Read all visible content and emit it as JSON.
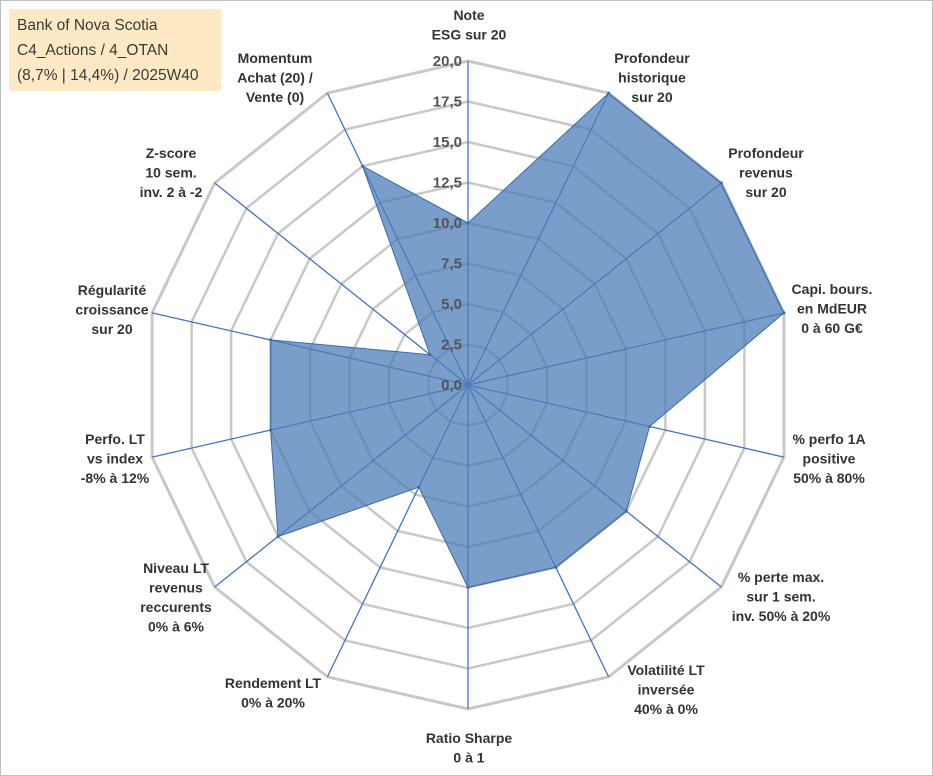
{
  "title": {
    "line1": "Bank of Nova Scotia",
    "line2": "C4_Actions / 4_OTAN",
    "line3": "(8,7% | 14,4%) / 2025W40"
  },
  "colors": {
    "fill": "#4e7db8",
    "stroke": "#3a6aa8",
    "grid": "#c8c8c8",
    "spoke": "#4472c4"
  },
  "chart_data": {
    "type": "radar",
    "rmax": 20,
    "ticks": [
      "0,0",
      "2,5",
      "5,0",
      "7,5",
      "10,0",
      "12,5",
      "15,0",
      "17,5",
      "20,0"
    ],
    "tick_values": [
      0,
      2.5,
      5,
      7.5,
      10,
      12.5,
      15,
      17.5,
      20
    ],
    "axes": [
      {
        "lines": [
          "Note",
          "ESG sur 20"
        ],
        "value": 10.0
      },
      {
        "lines": [
          "Profondeur",
          "historique",
          "sur 20"
        ],
        "value": 20.0
      },
      {
        "lines": [
          "Profondeur",
          "revenus",
          "sur 20"
        ],
        "value": 20.0
      },
      {
        "lines": [
          "Capi. bours.",
          "en MdEUR",
          "0 à 60 G€"
        ],
        "value": 20.0
      },
      {
        "lines": [
          "% perfo 1A",
          "positive",
          "50% à 80%"
        ],
        "value": 11.5
      },
      {
        "lines": [
          "% perte max.",
          "sur 1 sem.",
          "inv. 50% à 20%"
        ],
        "value": 12.5
      },
      {
        "lines": [
          "Volatilité LT",
          "inversée",
          "40% à 0%"
        ],
        "value": 12.5
      },
      {
        "lines": [
          "Ratio Sharpe",
          "0 à 1"
        ],
        "value": 12.5
      },
      {
        "lines": [
          "Rendement LT",
          "0% à 20%"
        ],
        "value": 7.0
      },
      {
        "lines": [
          "Niveau LT",
          "revenus",
          "reccurents",
          "0% à 6%"
        ],
        "value": 15.0
      },
      {
        "lines": [
          "Perfo. LT",
          "vs index",
          "-8% à 12%"
        ],
        "value": 12.5
      },
      {
        "lines": [
          "Régularité",
          "croissance",
          "sur 20"
        ],
        "value": 12.5
      },
      {
        "lines": [
          "Z-score",
          "10 sem.",
          "inv. 2 à -2"
        ],
        "value": 3.0
      },
      {
        "lines": [
          "Momentum",
          "Achat (20) /",
          "Vente (0)"
        ],
        "value": 15.0
      }
    ]
  }
}
